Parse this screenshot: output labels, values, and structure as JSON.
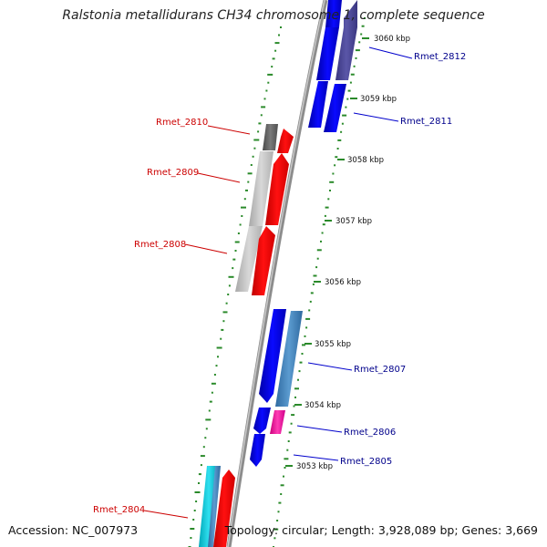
{
  "title": "Ralstonia metallidurans CH34 chromosome 1, complete sequence",
  "footer": {
    "accession": "Accession: NC_007973",
    "summary": "Topology: circular; Length: 3,928,089 bp; Genes: 3,669"
  },
  "ticks": [
    {
      "label": "3060 kbp"
    },
    {
      "label": "3059 kbp"
    },
    {
      "label": "3058 kbp"
    },
    {
      "label": "3057 kbp"
    },
    {
      "label": "3056 kbp"
    },
    {
      "label": "3055 kbp"
    },
    {
      "label": "3054 kbp"
    },
    {
      "label": "3053 kbp"
    }
  ],
  "genes": [
    {
      "label": "Rmet_2812",
      "color": "#00008b"
    },
    {
      "label": "Rmet_2811",
      "color": "#00008b"
    },
    {
      "label": "Rmet_2810",
      "color": "#cc0000"
    },
    {
      "label": "Rmet_2809",
      "color": "#cc0000"
    },
    {
      "label": "Rmet_2808",
      "color": "#cc0000"
    },
    {
      "label": "Rmet_2807",
      "color": "#00008b"
    },
    {
      "label": "Rmet_2806",
      "color": "#00008b"
    },
    {
      "label": "Rmet_2805",
      "color": "#00008b"
    },
    {
      "label": "Rmet_2804",
      "color": "#cc0000"
    }
  ],
  "colors": {
    "backbone": "#8c8c8c",
    "forward_strand": "#0000ff",
    "reverse_strand": "#ff0000",
    "dot_track": "#2a8a2a"
  }
}
